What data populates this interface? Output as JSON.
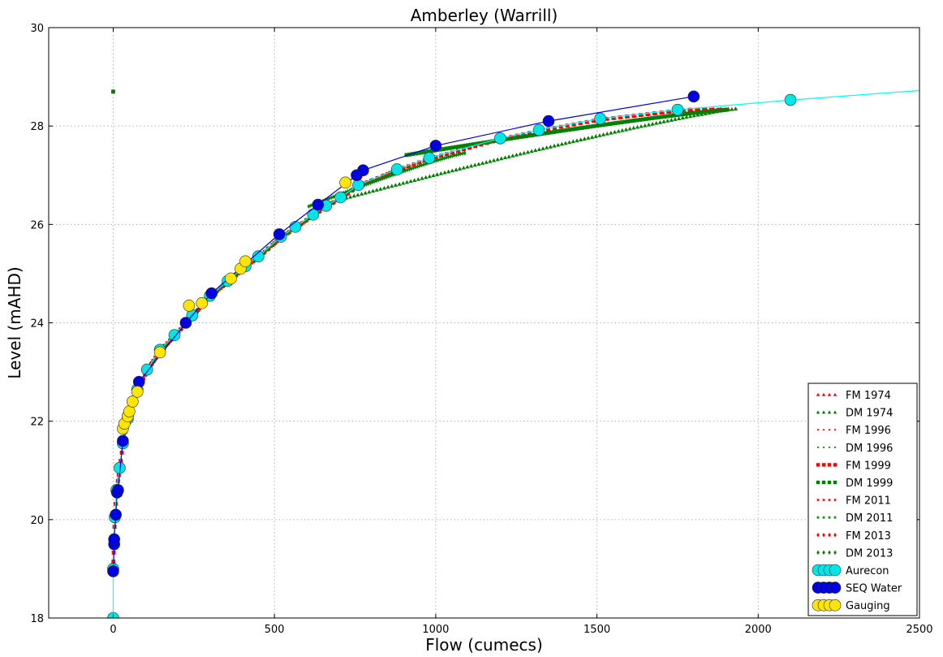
{
  "chart_data": {
    "type": "scatter",
    "title": "Amberley (Warrill)",
    "xlabel": "Flow (cumecs)",
    "ylabel": "Level (mAHD)",
    "xlim": [
      -200,
      2500
    ],
    "ylim": [
      18,
      30
    ],
    "x_ticks": [
      "0",
      "500",
      "1000",
      "1500",
      "2000",
      "2500"
    ],
    "y_ticks": [
      "18",
      "20",
      "22",
      "24",
      "26",
      "28",
      "30"
    ],
    "grid": true,
    "legend_position": "lower-right",
    "series": [
      {
        "name": "FM 1974",
        "color": "#ff0000",
        "marker": "triangle",
        "rising": true,
        "peak_flow": 1930,
        "peak_level": 28.35
      },
      {
        "name": "DM 1974",
        "color": "#008000",
        "marker": "triangle",
        "rising": false,
        "peak_flow": 1930,
        "peak_level": 28.35,
        "fall_end_flow": 700,
        "fall_end_level": 26.5
      },
      {
        "name": "FM 1996",
        "color": "#ff0000",
        "marker": "dot",
        "rising": true,
        "peak_flow": 1900,
        "peak_level": 28.33
      },
      {
        "name": "DM 1996",
        "color": "#008000",
        "marker": "dot",
        "rising": false,
        "peak_flow": 1900,
        "peak_level": 28.33,
        "fall_end_flow": 900,
        "fall_end_level": 27.4
      },
      {
        "name": "FM 1999",
        "color": "#ff0000",
        "marker": "square",
        "rising": true,
        "peak_flow": 1900,
        "peak_level": 28.33
      },
      {
        "name": "DM 1999",
        "color": "#008000",
        "marker": "square",
        "rising": false,
        "peak_flow": 1900,
        "peak_level": 28.33,
        "fall_end_flow": 900,
        "fall_end_level": 27.4
      },
      {
        "name": "FM 2011",
        "color": "#ff0000",
        "marker": "star",
        "rising": true,
        "peak_flow": 1900,
        "peak_level": 28.33
      },
      {
        "name": "DM 2011",
        "color": "#008000",
        "marker": "star",
        "rising": false,
        "peak_flow": 1900,
        "peak_level": 28.33,
        "fall_end_flow": 900,
        "fall_end_level": 27.4
      },
      {
        "name": "FM 2013",
        "color": "#ff0000",
        "marker": "diamond",
        "rising": true,
        "peak_flow": 1090,
        "peak_level": 27.45
      },
      {
        "name": "DM 2013",
        "color": "#008000",
        "marker": "diamond",
        "rising": false,
        "peak_flow": 1090,
        "peak_level": 27.45,
        "fall_end_flow": 600,
        "fall_end_level": 26.35
      },
      {
        "name": "Aurecon",
        "color": "#00e5e5",
        "marker": "circle",
        "line": true,
        "points": [
          [
            0,
            18.0
          ],
          [
            0,
            19.0
          ],
          [
            5,
            20.05
          ],
          [
            10,
            20.6
          ],
          [
            20,
            21.05
          ],
          [
            30,
            21.55
          ],
          [
            45,
            22.05
          ],
          [
            75,
            22.65
          ],
          [
            105,
            23.05
          ],
          [
            145,
            23.45
          ],
          [
            190,
            23.75
          ],
          [
            245,
            24.15
          ],
          [
            300,
            24.55
          ],
          [
            355,
            24.85
          ],
          [
            410,
            25.15
          ],
          [
            450,
            25.35
          ],
          [
            520,
            25.75
          ],
          [
            565,
            25.95
          ],
          [
            620,
            26.2
          ],
          [
            660,
            26.38
          ],
          [
            705,
            26.55
          ],
          [
            760,
            26.8
          ],
          [
            880,
            27.12
          ],
          [
            980,
            27.35
          ],
          [
            1200,
            27.75
          ],
          [
            1320,
            27.92
          ],
          [
            1510,
            28.15
          ],
          [
            1750,
            28.33
          ],
          [
            2100,
            28.53
          ],
          [
            2500,
            28.72
          ]
        ]
      },
      {
        "name": "SEQ Water",
        "color": "#0000e0",
        "marker": "circle",
        "line": true,
        "points": [
          [
            0,
            18.95
          ],
          [
            3,
            19.5
          ],
          [
            3,
            19.6
          ],
          [
            8,
            20.1
          ],
          [
            12,
            20.55
          ],
          [
            15,
            20.6
          ],
          [
            30,
            21.6
          ],
          [
            45,
            22.1
          ],
          [
            80,
            22.8
          ],
          [
            225,
            24.0
          ],
          [
            305,
            24.6
          ],
          [
            515,
            25.8
          ],
          [
            635,
            26.4
          ],
          [
            755,
            27.0
          ],
          [
            775,
            27.1
          ],
          [
            1000,
            27.6
          ],
          [
            1350,
            28.1
          ],
          [
            1800,
            28.6
          ]
        ]
      },
      {
        "name": "Gauging",
        "color": "#ffe600",
        "marker": "circle",
        "line": false,
        "points": [
          [
            30,
            21.85
          ],
          [
            35,
            21.95
          ],
          [
            45,
            22.1
          ],
          [
            50,
            22.2
          ],
          [
            60,
            22.4
          ],
          [
            75,
            22.6
          ],
          [
            145,
            23.4
          ],
          [
            235,
            24.35
          ],
          [
            275,
            24.4
          ],
          [
            365,
            24.9
          ],
          [
            395,
            25.1
          ],
          [
            410,
            25.25
          ],
          [
            720,
            26.85
          ]
        ]
      }
    ]
  }
}
